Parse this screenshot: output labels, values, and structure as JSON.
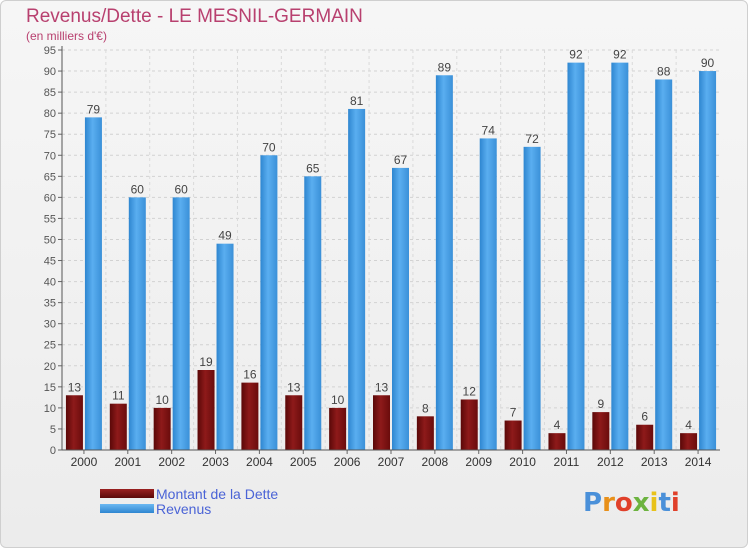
{
  "title": "Revenus/Dette - LE MESNIL-GERMAIN",
  "subtitle": "(en milliers d'€)",
  "logo": {
    "text": "Proxiti",
    "colors": [
      "#4a90d9",
      "#e8901a",
      "#e0402a",
      "#6cb33f",
      "#e8c21a",
      "#4a90d9",
      "#e0402a"
    ]
  },
  "chart_data": {
    "type": "bar",
    "categories": [
      "2000",
      "2001",
      "2002",
      "2003",
      "2004",
      "2005",
      "2006",
      "2007",
      "2008",
      "2009",
      "2010",
      "2011",
      "2012",
      "2013",
      "2014"
    ],
    "series": [
      {
        "name": "Montant de la Dette",
        "color": "#7a1010",
        "values": [
          13,
          11,
          10,
          19,
          16,
          13,
          10,
          13,
          8,
          12,
          7,
          4,
          9,
          6,
          4
        ]
      },
      {
        "name": "Revenus",
        "color": "#3d9be3",
        "values": [
          79,
          60,
          60,
          49,
          70,
          65,
          81,
          67,
          89,
          74,
          72,
          92,
          92,
          88,
          90
        ]
      }
    ],
    "ylim": [
      0,
      95
    ],
    "yticks": [
      0,
      5,
      10,
      15,
      20,
      25,
      30,
      35,
      40,
      45,
      50,
      55,
      60,
      65,
      70,
      75,
      80,
      85,
      90,
      95
    ],
    "grid": true,
    "legend_position": "bottom-left"
  }
}
